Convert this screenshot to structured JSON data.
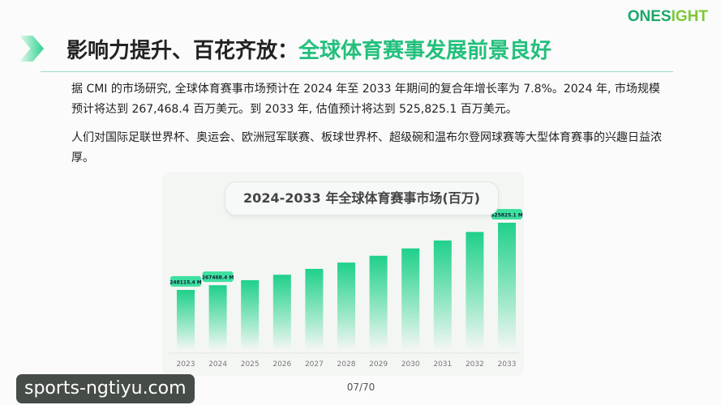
{
  "logo": {
    "part1": "ONES",
    "part2": "IGHT"
  },
  "header": {
    "title_main": "影响力提升、百花齐放：",
    "title_highlight": "全球体育赛事发展前景良好"
  },
  "body": {
    "para1": "据 CMI 的市场研究, 全球体育赛事市场预计在 2024 年至 2033 年期间的复合年增长率为 7.8%。2024 年, 市场规模预计将达到 267,468.4 百万美元。到 2033 年, 估值预计将达到 525,825.1 百万美元。",
    "para2": "人们对国际足联世界杯、奥运会、欧洲冠军联赛、板球世界杯、超级碗和温布尔登网球赛等大型体育赛事的兴趣日益浓厚。"
  },
  "chart_data": {
    "type": "bar",
    "title": "2024-2033 年全球体育赛事市场(百万)",
    "categories": [
      "2023",
      "2024",
      "2025",
      "2026",
      "2027",
      "2028",
      "2029",
      "2030",
      "2031",
      "2032",
      "2033"
    ],
    "values": [
      248115.4,
      267468.4,
      288330,
      310820,
      335060,
      361200,
      389370,
      419740,
      452480,
      487780,
      525825.1
    ],
    "data_labels": {
      "0": "248115.4 M",
      "1": "267468.4 M",
      "10": "525825.1 M"
    },
    "ylim": [
      0,
      525825.1
    ],
    "bar_color": "#1fd08a",
    "grid": false
  },
  "watermark": "sports-ngtiyu.com",
  "page_number": "07/70"
}
